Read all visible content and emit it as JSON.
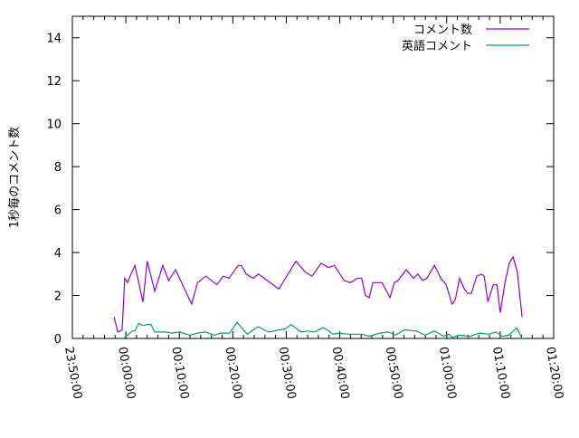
{
  "chart_data": {
    "type": "line",
    "title": "",
    "xlabel": "",
    "ylabel": "1秒毎のコメント数",
    "xlim": [
      "23:50:00",
      "01:20:00"
    ],
    "ylim": [
      0,
      15
    ],
    "x_ticks": [
      "23:50:00",
      "00:00:00",
      "00:10:00",
      "00:20:00",
      "00:30:00",
      "00:40:00",
      "00:50:00",
      "01:00:00",
      "01:10:00",
      "01:20:00"
    ],
    "y_ticks": [
      "0",
      "2",
      "4",
      "6",
      "8",
      "10",
      "12",
      "14"
    ],
    "grid": false,
    "legend_position": "top-right",
    "series": [
      {
        "name": "コメント数",
        "color": "#9400d3",
        "x": [
          "23:57:48",
          "23:58:30",
          "23:59:18",
          "23:59:48",
          "00:00:18",
          "00:00:48",
          "00:01:42",
          "00:03:12",
          "00:04:00",
          "00:05:24",
          "00:06:54",
          "00:08:00",
          "00:09:18",
          "00:12:18",
          "00:13:24",
          "00:15:00",
          "00:17:00",
          "00:18:12",
          "00:19:18",
          "00:21:00",
          "00:21:36",
          "00:22:30",
          "00:23:48",
          "00:24:48",
          "00:28:36",
          "00:31:48",
          "00:33:30",
          "00:34:48",
          "00:36:30",
          "00:37:54",
          "00:39:00",
          "00:40:48",
          "00:42:00",
          "00:43:18",
          "00:44:06",
          "00:44:48",
          "00:45:30",
          "00:46:12",
          "00:47:54",
          "00:49:24",
          "00:50:12",
          "00:50:54",
          "00:52:24",
          "00:53:48",
          "00:54:36",
          "00:55:30",
          "00:56:18",
          "00:57:42",
          "00:58:54",
          "00:59:54",
          "01:01:00",
          "01:01:36",
          "01:02:24",
          "01:03:18",
          "01:03:54",
          "01:04:36",
          "01:05:36",
          "01:06:30",
          "01:07:00",
          "01:07:42",
          "01:08:42",
          "01:09:24",
          "01:10:00",
          "01:10:54",
          "01:11:42",
          "01:12:24",
          "01:13:12",
          "01:14:06"
        ],
        "values": [
          1.0,
          0.3,
          0.4,
          2.8,
          2.6,
          2.9,
          3.4,
          1.7,
          3.6,
          2.2,
          3.4,
          2.7,
          3.2,
          1.6,
          2.6,
          2.9,
          2.5,
          2.9,
          2.8,
          3.4,
          3.4,
          3.0,
          2.8,
          3.0,
          2.3,
          3.6,
          3.1,
          2.9,
          3.5,
          3.3,
          3.4,
          2.7,
          2.6,
          2.8,
          2.8,
          2.0,
          1.9,
          2.6,
          2.6,
          1.9,
          2.6,
          2.7,
          3.2,
          2.8,
          3.0,
          2.7,
          2.8,
          3.4,
          2.8,
          2.5,
          1.6,
          1.8,
          2.8,
          2.3,
          2.1,
          2.1,
          2.9,
          3.0,
          2.9,
          1.7,
          2.5,
          2.5,
          1.2,
          2.6,
          3.5,
          3.8,
          3.1,
          1.0
        ]
      },
      {
        "name": "英語コメント",
        "color": "#009e73",
        "x": [
          "23:59:36",
          "00:00:18",
          "00:01:18",
          "00:01:42",
          "00:02:24",
          "00:03:12",
          "00:04:00",
          "00:04:42",
          "00:05:24",
          "00:07:24",
          "00:08:36",
          "00:10:00",
          "00:12:00",
          "00:13:24",
          "00:14:54",
          "00:16:36",
          "00:17:42",
          "00:19:24",
          "00:20:48",
          "00:22:42",
          "00:24:42",
          "00:26:42",
          "00:29:48",
          "00:30:54",
          "00:32:48",
          "00:34:00",
          "00:35:12",
          "00:36:54",
          "00:37:42",
          "00:38:42",
          "00:39:54",
          "00:41:36",
          "00:44:06",
          "00:45:30",
          "00:47:30",
          "00:49:12",
          "00:50:24",
          "00:52:06",
          "00:54:18",
          "00:56:00",
          "00:57:42",
          "00:59:24",
          "01:00:30",
          "01:01:00",
          "01:02:24",
          "01:04:24",
          "01:06:06",
          "01:07:48",
          "01:09:12",
          "01:10:24",
          "01:11:36",
          "01:13:06",
          "01:14:06"
        ],
        "values": [
          0,
          0.15,
          0.35,
          0.35,
          0.7,
          0.6,
          0.65,
          0.65,
          0.3,
          0.3,
          0.25,
          0.3,
          0.15,
          0.25,
          0.3,
          0.15,
          0.25,
          0.25,
          0.75,
          0.2,
          0.55,
          0.3,
          0.45,
          0.65,
          0.3,
          0.35,
          0.3,
          0.5,
          0.4,
          0.2,
          0.25,
          0.2,
          0.2,
          0.1,
          0.25,
          0.3,
          0.15,
          0.4,
          0.35,
          0.15,
          0.35,
          0.1,
          0.2,
          0.05,
          0.15,
          0.1,
          0.25,
          0.2,
          0.3,
          0.1,
          0.15,
          0.5,
          0
        ]
      }
    ]
  }
}
